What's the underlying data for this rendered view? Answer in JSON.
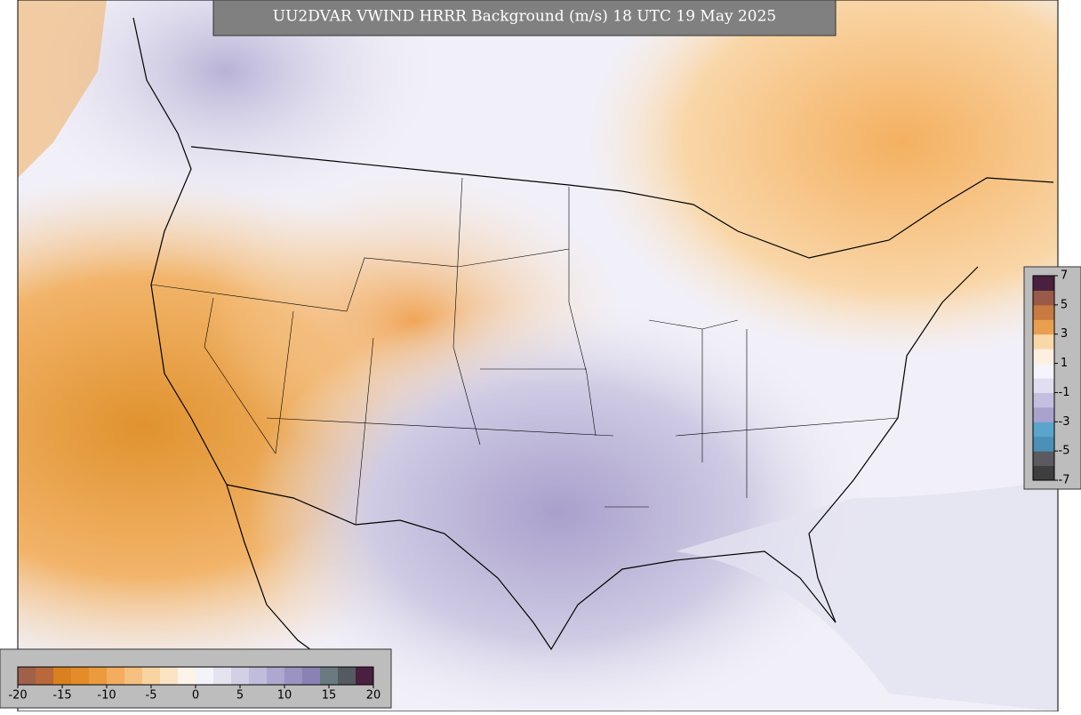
{
  "title": "UU2DVAR VWIND HRRR Background (m/s) 18 UTC 19 May 2025",
  "colorbar_bottom": {
    "lim": [
      -20,
      20
    ],
    "ticks": [
      -20,
      -15,
      -10,
      -5,
      0,
      5,
      10,
      15,
      20
    ],
    "colors": [
      "#a0604a",
      "#b8683a",
      "#d9801f",
      "#e48c2a",
      "#ec9a3e",
      "#f2ad5e",
      "#f6c07e",
      "#f9d3a2",
      "#fbe4c6",
      "#fdf3e8",
      "#f3f3fa",
      "#e4e3f0",
      "#d3d0e6",
      "#c0bcdb",
      "#aea7cf",
      "#9b93c2",
      "#8a82b4",
      "#6a7a80",
      "#555a60",
      "#4a2040"
    ]
  },
  "colorbar_right": {
    "lim": [
      -7,
      7
    ],
    "ticks": [
      7,
      5,
      3,
      1,
      -1,
      -3,
      -5,
      -7
    ],
    "colors": [
      "#3e3e3e",
      "#5a5a60",
      "#4a90b8",
      "#5aa5cc",
      "#a9a2cc",
      "#c4bfde",
      "#e0def0",
      "#f4f4fa",
      "#fdf0e0",
      "#f8d8a8",
      "#e8a050",
      "#c87a40",
      "#9a5a48",
      "#4a2040"
    ]
  }
}
